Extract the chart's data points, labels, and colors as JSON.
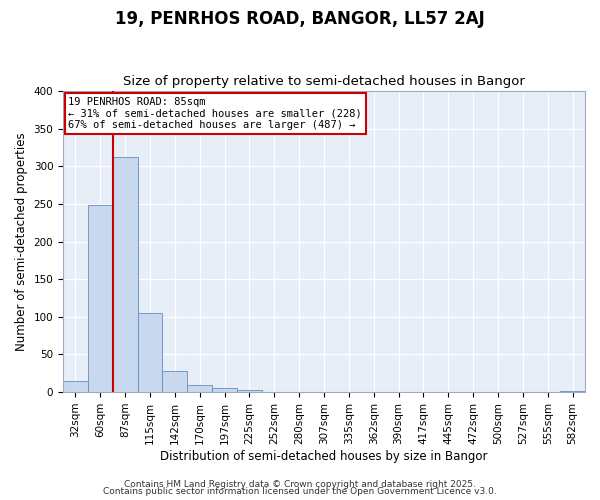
{
  "title": "19, PENRHOS ROAD, BANGOR, LL57 2AJ",
  "subtitle": "Size of property relative to semi-detached houses in Bangor",
  "xlabel": "Distribution of semi-detached houses by size in Bangor",
  "ylabel": "Number of semi-detached properties",
  "bin_labels": [
    "32sqm",
    "60sqm",
    "87sqm",
    "115sqm",
    "142sqm",
    "170sqm",
    "197sqm",
    "225sqm",
    "252sqm",
    "280sqm",
    "307sqm",
    "335sqm",
    "362sqm",
    "390sqm",
    "417sqm",
    "445sqm",
    "472sqm",
    "500sqm",
    "527sqm",
    "555sqm",
    "582sqm"
  ],
  "bar_heights": [
    15,
    249,
    313,
    105,
    28,
    10,
    6,
    3,
    0,
    0,
    0,
    0,
    0,
    0,
    0,
    0,
    0,
    0,
    0,
    0,
    2
  ],
  "bar_color": "#c8d8ee",
  "bar_edge_color": "#6090c0",
  "vline_x": 2,
  "vline_color": "#cc0000",
  "annotation_lines": [
    "19 PENRHOS ROAD: 85sqm",
    "← 31% of semi-detached houses are smaller (228)",
    "67% of semi-detached houses are larger (487) →"
  ],
  "annotation_box_color": "#cc0000",
  "ylim": [
    0,
    400
  ],
  "yticks": [
    0,
    50,
    100,
    150,
    200,
    250,
    300,
    350,
    400
  ],
  "footer_line1": "Contains HM Land Registry data © Crown copyright and database right 2025.",
  "footer_line2": "Contains public sector information licensed under the Open Government Licence v3.0.",
  "bg_color": "#f0f4ff",
  "plot_bg_color": "#e8eef8",
  "title_fontsize": 12,
  "subtitle_fontsize": 9.5,
  "axis_label_fontsize": 8.5,
  "tick_fontsize": 7.5,
  "footer_fontsize": 6.5,
  "annot_fontsize": 7.5
}
